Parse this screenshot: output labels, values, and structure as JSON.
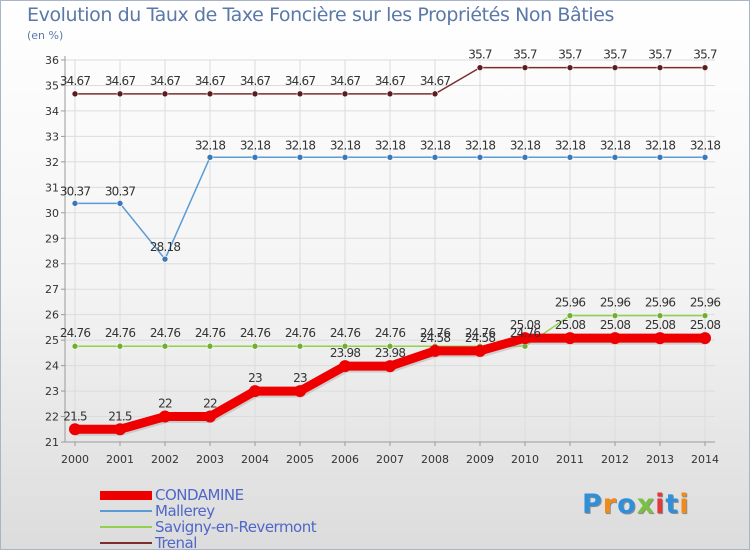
{
  "chart_data": {
    "type": "line",
    "title": "Evolution du Taux de Taxe Foncière sur les Propriétés Non Bâties",
    "ylabel": "(en %)",
    "xlabel": "",
    "ylim": [
      21,
      36
    ],
    "yticks": [
      "21",
      "22",
      "23",
      "24",
      "25",
      "26",
      "27",
      "28",
      "29",
      "30",
      "31",
      "32",
      "33",
      "34",
      "35",
      "36"
    ],
    "categories": [
      "2000",
      "2001",
      "2002",
      "2003",
      "2004",
      "2005",
      "2006",
      "2007",
      "2008",
      "2009",
      "2010",
      "2011",
      "2012",
      "2013",
      "2014"
    ],
    "series": [
      {
        "name": "CONDAMINE",
        "color": "#ee0000",
        "values": [
          21.5,
          21.5,
          22,
          22,
          23,
          23,
          23.98,
          23.98,
          24.58,
          24.58,
          25.08,
          25.08,
          25.08,
          25.08,
          25.08
        ],
        "labels": [
          "21.5",
          "21.5",
          "22",
          "22",
          "23",
          "23",
          "23.98",
          "23.98",
          "24.58",
          "24.58",
          "25.08",
          "25.08",
          "25.08",
          "25.08",
          "25.08"
        ]
      },
      {
        "name": "Mallerey",
        "color": "#5b9bd5",
        "values": [
          30.37,
          30.37,
          28.18,
          32.18,
          32.18,
          32.18,
          32.18,
          32.18,
          32.18,
          32.18,
          32.18,
          32.18,
          32.18,
          32.18,
          32.18
        ],
        "labels": [
          "30.37",
          "30.37",
          "28.18",
          "32.18",
          "32.18",
          "32.18",
          "32.18",
          "32.18",
          "32.18",
          "32.18",
          "32.18",
          "32.18",
          "32.18",
          "32.18",
          "32.18"
        ]
      },
      {
        "name": "Savigny-en-Revermont",
        "color": "#92d050",
        "values": [
          24.76,
          24.76,
          24.76,
          24.76,
          24.76,
          24.76,
          24.76,
          24.76,
          24.76,
          24.76,
          24.76,
          25.96,
          25.96,
          25.96,
          25.96
        ],
        "labels": [
          "24.76",
          "24.76",
          "24.76",
          "24.76",
          "24.76",
          "24.76",
          "24.76",
          "24.76",
          "24.76",
          "24.76",
          "24.76",
          "25.96",
          "25.96",
          "25.96",
          "25.96"
        ]
      },
      {
        "name": "Trenal",
        "color": "#7b2c2c",
        "values": [
          34.67,
          34.67,
          34.67,
          34.67,
          34.67,
          34.67,
          34.67,
          34.67,
          34.67,
          35.7,
          35.7,
          35.7,
          35.7,
          35.7,
          35.7
        ],
        "labels": [
          "34.67",
          "34.67",
          "34.67",
          "34.67",
          "34.67",
          "34.67",
          "34.67",
          "34.67",
          "34.67",
          "35.7",
          "35.7",
          "35.7",
          "35.7",
          "35.7",
          "35.7"
        ]
      }
    ],
    "legend_position": "bottom-left"
  },
  "logo": {
    "letters": [
      "P",
      "r",
      "o",
      "x",
      "i",
      "t",
      "i"
    ],
    "colors": [
      "#2f8fd8",
      "#f08a1c",
      "#2f8fd8",
      "#7ac142",
      "#e23a3a",
      "#2f8fd8",
      "#f08a1c"
    ]
  }
}
